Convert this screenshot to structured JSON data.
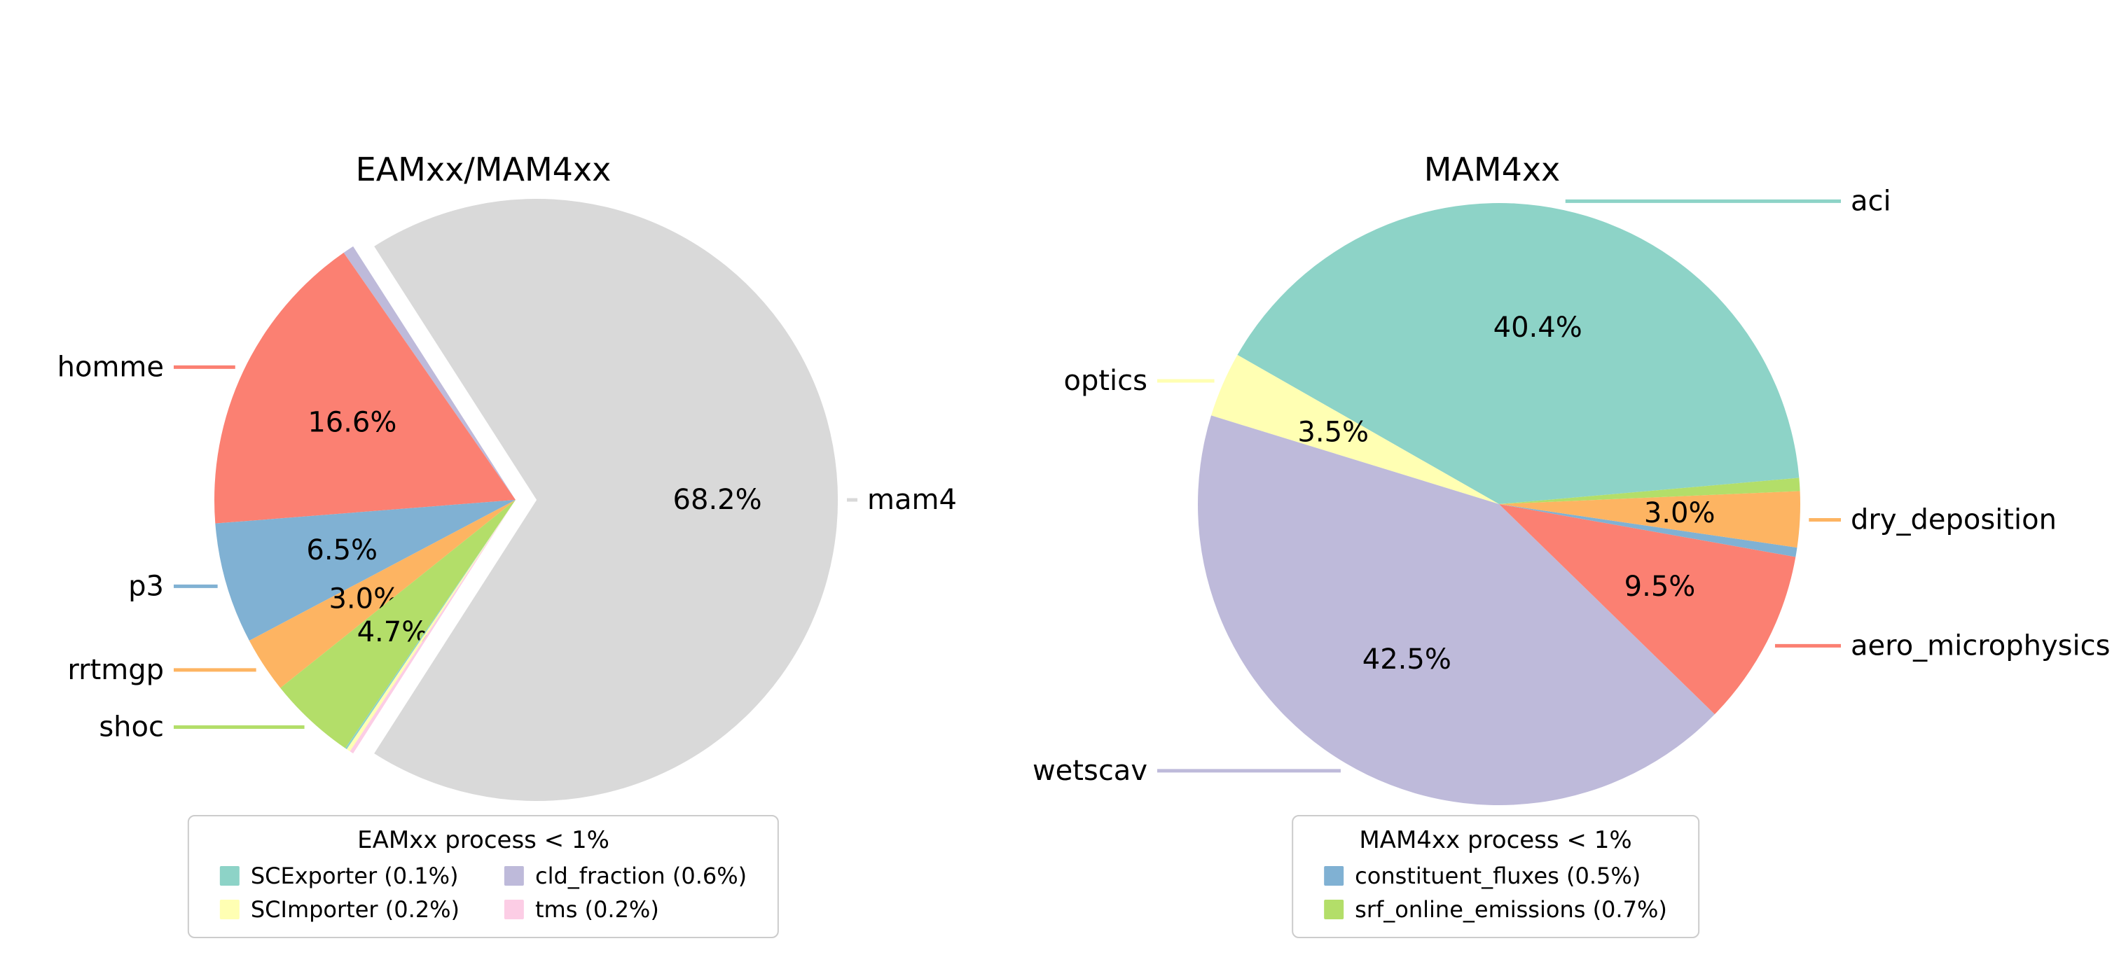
{
  "figure": {
    "background": "#ffffff"
  },
  "chart_data": [
    {
      "type": "pie",
      "title": "EAMxx/MAM4xx",
      "startangle": -122.64,
      "direction": "counterclockwise",
      "slices": [
        {
          "label": "mam4",
          "value": 68.2,
          "pct_label": "68.2%",
          "color": "#d9d9d9",
          "explode": 0.07,
          "label_outside": true
        },
        {
          "label": "cld_fraction",
          "value": 0.6,
          "color": "#bebada"
        },
        {
          "label": "homme",
          "value": 16.6,
          "pct_label": "16.6%",
          "color": "#fb8072",
          "label_outside": true
        },
        {
          "label": "p3",
          "value": 6.5,
          "pct_label": "6.5%",
          "color": "#80b1d3",
          "label_outside": true
        },
        {
          "label": "rrtmgp",
          "value": 3.0,
          "pct_label": "3.0%",
          "color": "#fdb462",
          "label_outside": true
        },
        {
          "label": "shoc",
          "value": 4.7,
          "pct_label": "4.7%",
          "color": "#b3de69",
          "label_outside": true
        },
        {
          "label": "SCExporter",
          "value": 0.1,
          "color": "#8dd3c7"
        },
        {
          "label": "SCImporter",
          "value": 0.2,
          "color": "#ffffb3"
        },
        {
          "label": "tms",
          "value": 0.2,
          "color": "#fccde5"
        }
      ],
      "legend": {
        "title": "EAMxx process < 1%",
        "rows": [
          [
            {
              "label": "SCExporter (0.1%)",
              "color": "#8dd3c7"
            },
            {
              "label": "cld_fraction (0.6%)",
              "color": "#bebada"
            }
          ],
          [
            {
              "label": "SCImporter (0.2%)",
              "color": "#ffffb3"
            },
            {
              "label": "tms (0.2%)",
              "color": "#fccde5"
            }
          ]
        ]
      }
    },
    {
      "type": "pie",
      "title": "MAM4xx",
      "startangle": 5.0,
      "direction": "counterclockwise",
      "slices": [
        {
          "label": "aci",
          "value": 40.4,
          "pct_label": "40.4%",
          "color": "#8dd3c7",
          "label_outside": true
        },
        {
          "label": "optics",
          "value": 3.5,
          "pct_label": "3.5%",
          "color": "#ffffb3",
          "label_outside": true
        },
        {
          "label": "wetscav",
          "value": 42.5,
          "pct_label": "42.5%",
          "color": "#bebada",
          "label_outside": true
        },
        {
          "label": "aero_microphysics",
          "value": 9.5,
          "pct_label": "9.5%",
          "color": "#fb8072",
          "label_outside": true
        },
        {
          "label": "constituent_fluxes",
          "value": 0.5,
          "color": "#80b1d3"
        },
        {
          "label": "dry_deposition",
          "value": 3.0,
          "pct_label": "3.0%",
          "color": "#fdb462",
          "label_outside": true
        },
        {
          "label": "srf_online_emissions",
          "value": 0.7,
          "color": "#b3de69"
        }
      ],
      "legend": {
        "title": "MAM4xx process < 1%",
        "rows": [
          [
            {
              "label": "constituent_fluxes (0.5%)",
              "color": "#80b1d3"
            }
          ],
          [
            {
              "label": "srf_online_emissions (0.7%)",
              "color": "#b3de69"
            }
          ]
        ]
      }
    }
  ]
}
